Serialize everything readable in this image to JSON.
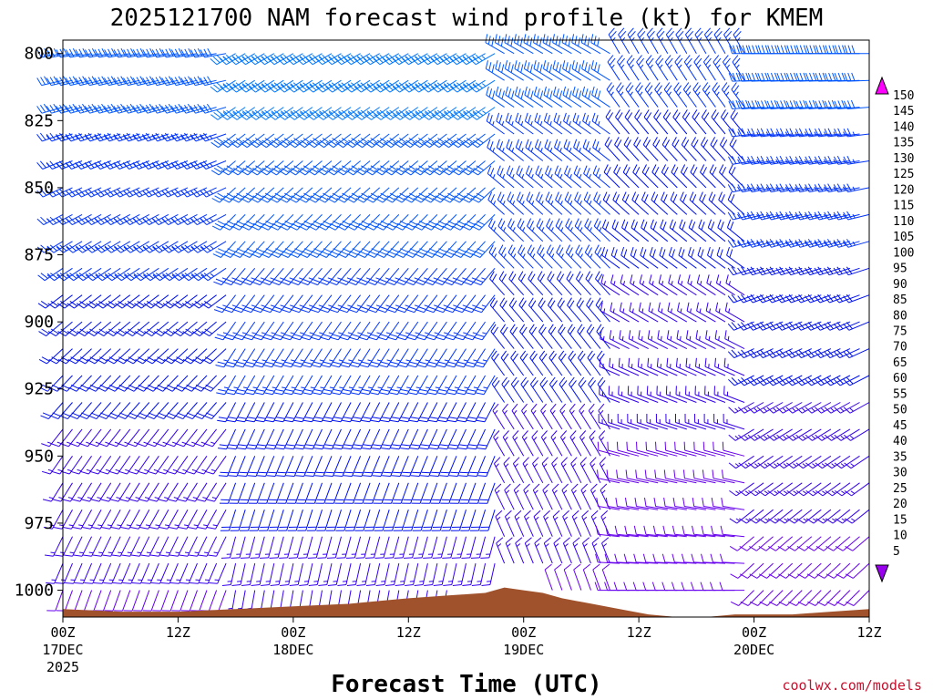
{
  "chart_data": {
    "type": "wind-barb-profile",
    "title": "2025121700 NAM forecast wind profile (kt) for KMEM",
    "xlabel": "Forecast Time (UTC)",
    "credit": "coolwx.com/models",
    "y_axis": {
      "unit": "hPa",
      "range": [
        795,
        1010
      ],
      "ticks": [
        "800",
        "825",
        "850",
        "875",
        "900",
        "925",
        "950",
        "975",
        "1000"
      ]
    },
    "x_axis": {
      "unit": "forecast hour",
      "range": [
        0,
        84
      ],
      "ticks": [
        {
          "hour": 0,
          "label": "00Z",
          "date": "17DEC",
          "year": "2025"
        },
        {
          "hour": 12,
          "label": "12Z",
          "date": "",
          "year": ""
        },
        {
          "hour": 24,
          "label": "00Z",
          "date": "18DEC",
          "year": ""
        },
        {
          "hour": 36,
          "label": "12Z",
          "date": "",
          "year": ""
        },
        {
          "hour": 48,
          "label": "00Z",
          "date": "19DEC",
          "year": ""
        },
        {
          "hour": 60,
          "label": "12Z",
          "date": "",
          "year": ""
        },
        {
          "hour": 72,
          "label": "00Z",
          "date": "20DEC",
          "year": ""
        },
        {
          "hour": 84,
          "label": "12Z",
          "date": "",
          "year": ""
        }
      ]
    },
    "colorbar": {
      "labels": [
        "150",
        "145",
        "140",
        "135",
        "130",
        "125",
        "120",
        "115",
        "110",
        "105",
        "100",
        "95",
        "90",
        "85",
        "80",
        "75",
        "70",
        "65",
        "60",
        "55",
        "50",
        "45",
        "40",
        "35",
        "30",
        "25",
        "20",
        "15",
        "10",
        "5"
      ],
      "colors": [
        "#ff00ff",
        "#ff00cc",
        "#ff0099",
        "#ff0066",
        "#ff0033",
        "#ff0000",
        "#ff2200",
        "#ff4400",
        "#ff6600",
        "#ff7700",
        "#ff8800",
        "#ffaa00",
        "#ffcc00",
        "#ffee00",
        "#ffff00",
        "#ccff00",
        "#88ff00",
        "#44ee00",
        "#00dd00",
        "#00ee88",
        "#00eedd",
        "#00ccff",
        "#0099ff",
        "#0077ff",
        "#0055ff",
        "#0033ff",
        "#0011ee",
        "#3300ee",
        "#6600ee",
        "#9900ee"
      ]
    },
    "terrain": {
      "color": "#a0522d",
      "surface_pressure": [
        [
          0,
          1007
        ],
        [
          6,
          1008
        ],
        [
          12,
          1008
        ],
        [
          18,
          1007
        ],
        [
          24,
          1006
        ],
        [
          30,
          1005
        ],
        [
          33,
          1004
        ],
        [
          36,
          1003
        ],
        [
          40,
          1002
        ],
        [
          44,
          1001
        ],
        [
          46,
          999
        ],
        [
          48,
          1000
        ],
        [
          50,
          1001
        ],
        [
          52,
          1003
        ],
        [
          55,
          1005
        ],
        [
          58,
          1007
        ],
        [
          61,
          1009
        ],
        [
          64,
          1010
        ],
        [
          67,
          1010
        ],
        [
          70,
          1009
        ],
        [
          72,
          1009
        ],
        [
          76,
          1009
        ],
        [
          80,
          1008
        ],
        [
          84,
          1007
        ]
      ]
    },
    "wind_columns": {
      "hours": [
        0,
        1,
        2,
        3,
        4,
        5,
        6,
        7,
        8,
        9,
        10,
        11,
        12,
        13,
        14,
        15,
        16,
        17,
        18,
        19,
        20,
        21,
        22,
        23,
        24,
        25,
        26,
        27,
        28,
        29,
        30,
        31,
        32,
        33,
        34,
        35,
        36,
        37,
        38,
        39,
        40,
        41,
        42,
        43,
        44,
        45,
        46,
        47,
        48,
        49,
        50,
        51,
        52,
        53,
        54,
        55,
        56,
        57,
        58,
        59,
        60,
        61,
        62,
        63,
        64,
        65,
        66,
        67,
        68,
        69,
        70,
        71,
        72,
        73,
        74,
        75,
        76,
        77,
        78,
        79,
        80,
        81,
        82,
        83,
        84
      ],
      "levels_hpa": [
        800,
        810,
        820,
        830,
        840,
        850,
        860,
        870,
        880,
        890,
        900,
        910,
        920,
        930,
        940,
        950,
        960,
        970,
        980,
        990,
        1000
      ]
    },
    "wind_regimes": [
      {
        "hours": [
          0,
          18
        ],
        "levels": [
          800,
          1000
        ],
        "dir_top": 260,
        "dir_bottom": 200,
        "spd_top": 30,
        "spd_bottom": 12
      },
      {
        "hours": [
          18,
          46
        ],
        "levels": [
          800,
          1000
        ],
        "dir_top": 240,
        "dir_bottom": 190,
        "spd_top": 35,
        "spd_bottom": 15
      },
      {
        "hours": [
          46,
          58
        ],
        "levels": [
          800,
          1000
        ],
        "dir_top": 300,
        "dir_bottom": 340,
        "spd_top": 30,
        "spd_bottom": 12
      },
      {
        "hours": [
          58,
          72
        ],
        "levels": [
          800,
          1000
        ],
        "dir_top": 330,
        "dir_bottom": 270,
        "spd_top": 25,
        "spd_bottom": 8
      },
      {
        "hours": [
          72,
          84
        ],
        "levels": [
          800,
          1000
        ],
        "dir_top": 270,
        "dir_bottom": 225,
        "spd_top": 30,
        "spd_bottom": 10
      }
    ]
  }
}
